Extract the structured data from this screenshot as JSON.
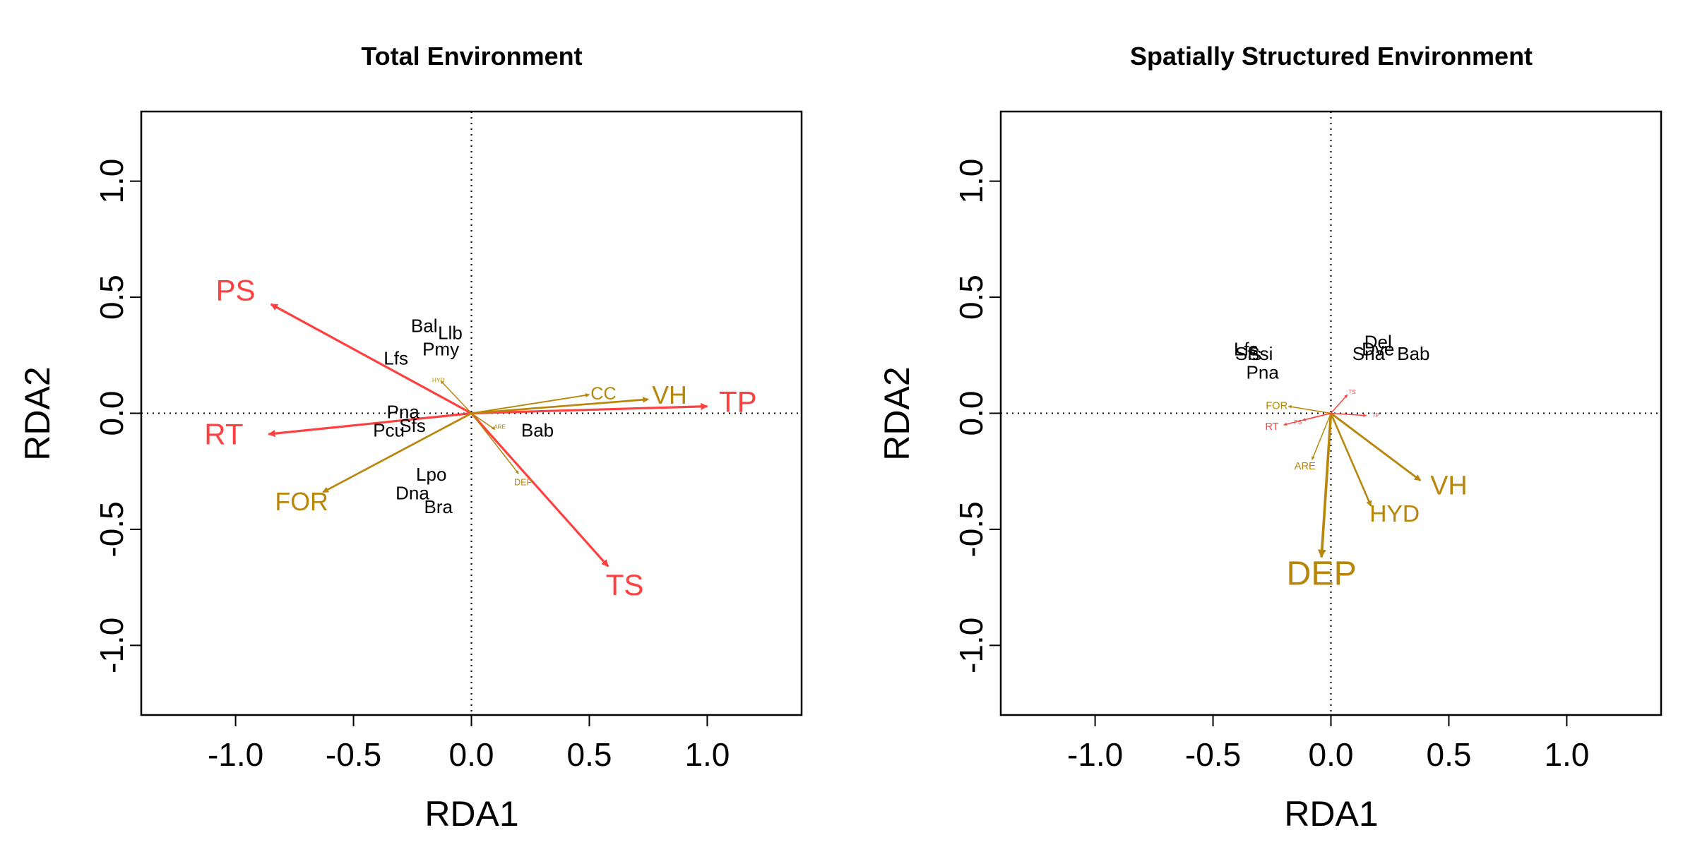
{
  "chart_data": [
    {
      "type": "scatter",
      "subtype": "rda-biplot",
      "title": "Total Environment",
      "xlabel": "RDA1",
      "ylabel": "RDA2",
      "xlim": [
        -1.4,
        1.4
      ],
      "ylim": [
        -1.3,
        1.3
      ],
      "xticks": [
        -1.0,
        -0.5,
        0.0,
        0.5,
        1.0
      ],
      "yticks": [
        -1.0,
        -0.5,
        0.0,
        0.5,
        1.0
      ],
      "tick_labels": [
        "-1.0",
        "-0.5",
        "0.0",
        "0.5",
        "1.0"
      ],
      "reference_lines": {
        "x": 0,
        "y": 0,
        "style": "dotted"
      },
      "colors": {
        "red": "#ff4040",
        "gold": "#b8860b"
      },
      "arrows": [
        {
          "name": "PS",
          "x": -0.85,
          "y": 0.47,
          "color": "red",
          "label_x": -1.0,
          "label_y": 0.52,
          "size": 1.0
        },
        {
          "name": "RT",
          "x": -0.86,
          "y": -0.09,
          "color": "red",
          "label_x": -1.05,
          "label_y": -0.1,
          "size": 1.0
        },
        {
          "name": "TP",
          "x": 1.0,
          "y": 0.03,
          "color": "red",
          "label_x": 1.13,
          "label_y": 0.04,
          "size": 1.0
        },
        {
          "name": "TS",
          "x": 0.58,
          "y": -0.66,
          "color": "red",
          "label_x": 0.65,
          "label_y": -0.75,
          "size": 1.0
        },
        {
          "name": "FOR",
          "x": -0.63,
          "y": -0.34,
          "color": "gold",
          "label_x": -0.72,
          "label_y": -0.39,
          "size": 0.85
        },
        {
          "name": "VH",
          "x": 0.75,
          "y": 0.06,
          "color": "gold",
          "label_x": 0.84,
          "label_y": 0.07,
          "size": 0.85
        },
        {
          "name": "CC",
          "x": 0.5,
          "y": 0.08,
          "color": "gold",
          "label_x": 0.56,
          "label_y": 0.08,
          "size": 0.6
        },
        {
          "name": "HYD",
          "x": -0.13,
          "y": 0.14,
          "color": "gold",
          "label_x": -0.14,
          "label_y": 0.14,
          "size": 0.2
        },
        {
          "name": "DEP",
          "x": 0.2,
          "y": -0.26,
          "color": "gold",
          "label_x": 0.22,
          "label_y": -0.3,
          "size": 0.3
        },
        {
          "name": "ARE",
          "x": 0.1,
          "y": -0.07,
          "color": "gold",
          "label_x": 0.12,
          "label_y": -0.06,
          "size": 0.15
        }
      ],
      "species": [
        {
          "name": "Bal",
          "x": -0.2,
          "y": 0.37
        },
        {
          "name": "Llb",
          "x": -0.09,
          "y": 0.34
        },
        {
          "name": "Pmy",
          "x": -0.13,
          "y": 0.27
        },
        {
          "name": "Lfs",
          "x": -0.32,
          "y": 0.23
        },
        {
          "name": "Pna",
          "x": -0.29,
          "y": 0.0
        },
        {
          "name": "Pcu",
          "x": -0.35,
          "y": -0.08
        },
        {
          "name": "Sfs",
          "x": -0.25,
          "y": -0.06
        },
        {
          "name": "Bab",
          "x": 0.28,
          "y": -0.08
        },
        {
          "name": "Lpo",
          "x": -0.17,
          "y": -0.27
        },
        {
          "name": "Dna",
          "x": -0.25,
          "y": -0.35
        },
        {
          "name": "Bra",
          "x": -0.14,
          "y": -0.41
        }
      ]
    },
    {
      "type": "scatter",
      "subtype": "rda-biplot",
      "title": "Spatially Structured Environment",
      "xlabel": "RDA1",
      "ylabel": "RDA2",
      "xlim": [
        -1.4,
        1.4
      ],
      "ylim": [
        -1.3,
        1.3
      ],
      "xticks": [
        -1.0,
        -0.5,
        0.0,
        0.5,
        1.0
      ],
      "yticks": [
        -1.0,
        -0.5,
        0.0,
        0.5,
        1.0
      ],
      "tick_labels": [
        "-1.0",
        "-0.5",
        "0.0",
        "0.5",
        "1.0"
      ],
      "reference_lines": {
        "x": 0,
        "y": 0,
        "style": "dotted"
      },
      "colors": {
        "red": "#ff4040",
        "gold": "#b8860b"
      },
      "arrows": [
        {
          "name": "DEP",
          "x": -0.04,
          "y": -0.62,
          "color": "gold",
          "label_x": -0.04,
          "label_y": -0.7,
          "size": 1.15
        },
        {
          "name": "HYD",
          "x": 0.17,
          "y": -0.4,
          "color": "gold",
          "label_x": 0.27,
          "label_y": -0.44,
          "size": 0.8
        },
        {
          "name": "VH",
          "x": 0.38,
          "y": -0.29,
          "color": "gold",
          "label_x": 0.5,
          "label_y": -0.32,
          "size": 0.9
        },
        {
          "name": "ARE",
          "x": -0.08,
          "y": -0.2,
          "color": "gold",
          "label_x": -0.11,
          "label_y": -0.23,
          "size": 0.35
        },
        {
          "name": "FOR",
          "x": -0.18,
          "y": 0.03,
          "color": "gold",
          "label_x": -0.23,
          "label_y": 0.03,
          "size": 0.35
        },
        {
          "name": "RT",
          "x": -0.2,
          "y": -0.05,
          "color": "red",
          "label_x": -0.25,
          "label_y": -0.06,
          "size": 0.35
        },
        {
          "name": "PS",
          "x": -0.12,
          "y": -0.03,
          "color": "red",
          "label_x": -0.14,
          "label_y": -0.04,
          "size": 0.15
        },
        {
          "name": "TP",
          "x": 0.15,
          "y": -0.01,
          "color": "red",
          "label_x": 0.19,
          "label_y": -0.01,
          "size": 0.15
        },
        {
          "name": "TS",
          "x": 0.07,
          "y": 0.08,
          "color": "red",
          "label_x": 0.09,
          "label_y": 0.09,
          "size": 0.15
        }
      ],
      "species": [
        {
          "name": "Lfs",
          "x": -0.36,
          "y": 0.27
        },
        {
          "name": "Sfs",
          "x": -0.35,
          "y": 0.25
        },
        {
          "name": "Ssi",
          "x": -0.3,
          "y": 0.25
        },
        {
          "name": "Pna",
          "x": -0.29,
          "y": 0.17
        },
        {
          "name": "Del",
          "x": 0.2,
          "y": 0.3
        },
        {
          "name": "Dve",
          "x": 0.2,
          "y": 0.27
        },
        {
          "name": "Sna",
          "x": 0.16,
          "y": 0.25
        },
        {
          "name": "Bab",
          "x": 0.35,
          "y": 0.25
        }
      ]
    }
  ]
}
